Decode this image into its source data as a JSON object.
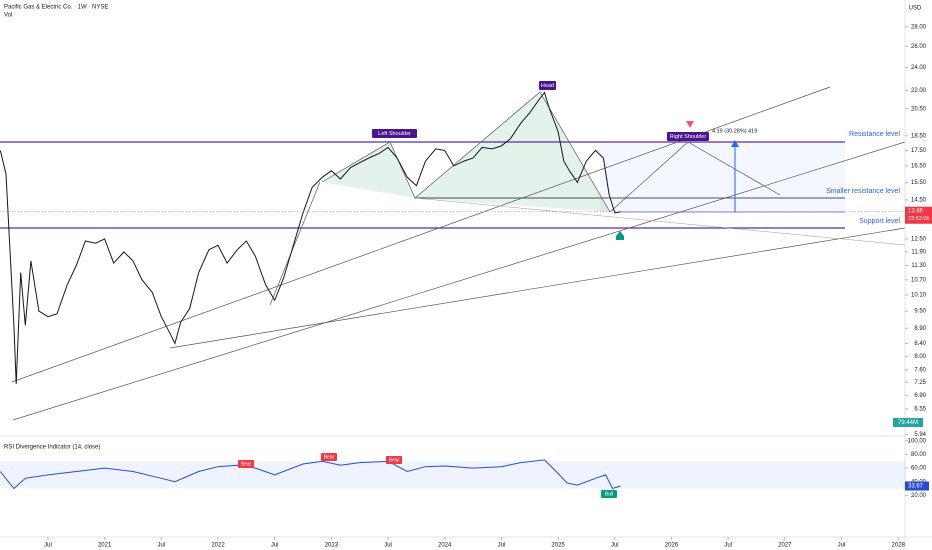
{
  "header": {
    "title": "Pacific Gas & Electric Co. · 1W · NYSE",
    "volume_label": "Vol",
    "currency": "USD"
  },
  "chart_data": {
    "type": "line",
    "yscale": "log",
    "color": "#131722",
    "x": [
      2020.08,
      2020.13,
      2020.2,
      2020.22,
      2020.26,
      2020.3,
      2020.35,
      2020.42,
      2020.5,
      2020.58,
      2020.67,
      2020.75,
      2020.83,
      2020.92,
      2021.0,
      2021.08,
      2021.17,
      2021.25,
      2021.33,
      2021.42,
      2021.5,
      2021.58,
      2021.62,
      2021.67,
      2021.75,
      2021.83,
      2021.92,
      2022.0,
      2022.08,
      2022.17,
      2022.25,
      2022.33,
      2022.42,
      2022.5,
      2022.58,
      2022.67,
      2022.75,
      2022.83,
      2022.92,
      2023.0,
      2023.08,
      2023.17,
      2023.25,
      2023.33,
      2023.42,
      2023.5,
      2023.58,
      2023.67,
      2023.75,
      2023.83,
      2023.92,
      2024.0,
      2024.08,
      2024.17,
      2024.25,
      2024.33,
      2024.42,
      2024.5,
      2024.58,
      2024.67,
      2024.75,
      2024.83,
      2024.88,
      2024.92,
      2025.0,
      2025.05,
      2025.1,
      2025.17,
      2025.25,
      2025.33,
      2025.4,
      2025.45,
      2025.5,
      2025.55
    ],
    "values": [
      17.5,
      16,
      9,
      7.2,
      11,
      9,
      11.5,
      9.5,
      9.3,
      9.4,
      10.5,
      11.3,
      12.4,
      12.3,
      12.5,
      11.4,
      11.9,
      11.5,
      10.7,
      10.2,
      9.3,
      8.7,
      8.4,
      9.1,
      9.6,
      11.0,
      12.0,
      12.2,
      11.4,
      12.0,
      12.4,
      11.7,
      10.5,
      9.9,
      10.8,
      12.3,
      13.8,
      15.2,
      15.8,
      16.2,
      15.7,
      16.4,
      16.7,
      17.0,
      17.3,
      17.7,
      17.0,
      15.8,
      15.3,
      16.8,
      17.6,
      17.5,
      16.5,
      16.8,
      17.0,
      17.7,
      17.6,
      17.8,
      18.3,
      19.4,
      20.2,
      21.2,
      21.8,
      20.6,
      18.8,
      16.8,
      16.2,
      15.5,
      16.8,
      17.5,
      17.0,
      14.8,
      13.8,
      13.86
    ],
    "xlim": [
      2020.077,
      2028.06
    ],
    "ylim": [
      5.82,
      31.0
    ],
    "xticks": [
      {
        "value": 2020.5,
        "label": "Jul"
      },
      2021,
      {
        "value": 2021.5,
        "label": "Jul"
      },
      2022,
      {
        "value": 2022.5,
        "label": "Jul"
      },
      2023,
      {
        "value": 2023.5,
        "label": "Jul"
      },
      2024,
      {
        "value": 2024.5,
        "label": "Jul"
      },
      2025,
      {
        "value": 2025.5,
        "label": "Jul"
      },
      2026,
      {
        "value": 2026.5,
        "label": "Jul"
      },
      2027,
      {
        "value": 2027.5,
        "label": "Jul"
      },
      2028
    ],
    "yticks": [
      {
        "value": 28,
        "label": "28.00"
      },
      {
        "value": 26,
        "label": "26.00"
      },
      {
        "value": 24,
        "label": "24.00"
      },
      {
        "value": 22,
        "label": "22.00"
      },
      {
        "value": 20.5,
        "label": "20.50"
      },
      {
        "value": 18.5,
        "label": "18.50"
      },
      {
        "value": 17.5,
        "label": "17.50"
      },
      {
        "value": 16.5,
        "label": "16.50"
      },
      {
        "value": 15.5,
        "label": "15.50"
      },
      {
        "value": 14.5,
        "label": "14.50"
      },
      {
        "value": 12.5,
        "label": "12.50"
      },
      {
        "value": 11.9,
        "label": "11.90"
      },
      {
        "value": 11.3,
        "label": "11.30"
      },
      {
        "value": 10.7,
        "label": "10.70"
      },
      {
        "value": 10.1,
        "label": "10.10"
      },
      {
        "value": 9.5,
        "label": "9.50"
      },
      {
        "value": 8.9,
        "label": "8.90"
      },
      {
        "value": 8.4,
        "label": "8.40"
      },
      {
        "value": 8,
        "label": "8.00"
      },
      {
        "value": 7.6,
        "label": "7.60"
      },
      {
        "value": 7.25,
        "label": "7.25"
      },
      {
        "value": 6.9,
        "label": "6.90"
      },
      {
        "value": 6.55,
        "label": "6.55"
      },
      {
        "value": 5.94,
        "label": "5.94"
      }
    ],
    "last_price": {
      "value": 13.86,
      "label": "13.86"
    },
    "countdown": "23:52:06",
    "volume_last": "79.44M"
  },
  "annotations": {
    "left_shoulder": "Left Shoulder",
    "head": "Head",
    "right_shoulder": "Right Shoulder",
    "measure": "4.19 (30.28%) 419",
    "resistance": "Resistance level",
    "smaller_resistance": "Smaller resistance level",
    "support": "Support level"
  },
  "rsi": {
    "title": "RSI Divergence Indicator (14, close)",
    "color": "#2a4bd7",
    "x": [
      2020.08,
      2020.2,
      2020.3,
      2020.5,
      2020.75,
      2021.0,
      2021.25,
      2021.5,
      2021.62,
      2021.83,
      2022.0,
      2022.17,
      2022.33,
      2022.5,
      2022.75,
      2022.92,
      2023.08,
      2023.25,
      2023.5,
      2023.67,
      2023.83,
      2024.0,
      2024.25,
      2024.5,
      2024.67,
      2024.88,
      2025.0,
      2025.08,
      2025.17,
      2025.33,
      2025.42,
      2025.48,
      2025.55
    ],
    "values": [
      55,
      30,
      45,
      50,
      55,
      60,
      55,
      45,
      40,
      55,
      62,
      64,
      60,
      50,
      66,
      70,
      64,
      68,
      70,
      55,
      62,
      63,
      60,
      62,
      68,
      72,
      52,
      38,
      35,
      45,
      50,
      30,
      33.67
    ],
    "ylim": [
      -41,
      107
    ],
    "yticks": [
      {
        "value": 100,
        "label": "100.00"
      },
      {
        "value": 80,
        "label": "80.00"
      },
      {
        "value": 60,
        "label": "60.00"
      },
      {
        "value": 40,
        "label": "40.00"
      },
      {
        "value": 20,
        "label": "20.00"
      }
    ],
    "last_value": {
      "value": 33.67,
      "label": "33.67"
    },
    "signals": [
      "Bear",
      "Bear",
      "Bear",
      "Bull"
    ]
  }
}
